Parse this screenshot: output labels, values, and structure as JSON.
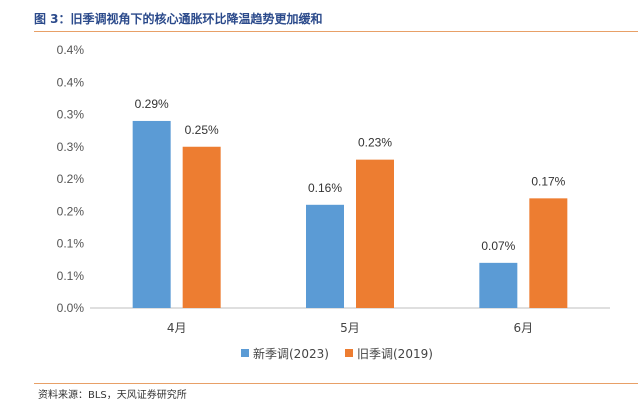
{
  "figure": {
    "title": "图 3：旧季调视角下的核心通胀环比降温趋势更加缓和",
    "source": "资料来源：BLS，天风证券研究所"
  },
  "colors": {
    "series_1": "#5b9bd5",
    "series_2": "#ed7d31",
    "rule": "#e8a067"
  },
  "chart_data": {
    "type": "bar",
    "categories": [
      "4月",
      "5月",
      "6月"
    ],
    "series": [
      {
        "name": "新季调(2023)",
        "values": [
          0.29,
          0.16,
          0.07
        ],
        "labels": [
          "0.29%",
          "0.16%",
          "0.07%"
        ]
      },
      {
        "name": "旧季调(2019)",
        "values": [
          0.25,
          0.23,
          0.17
        ],
        "labels": [
          "0.25%",
          "0.23%",
          "0.17%"
        ]
      }
    ],
    "ylim": [
      0,
      0.4
    ],
    "yticks": [
      0,
      0.05,
      0.1,
      0.15,
      0.2,
      0.25,
      0.3,
      0.35,
      0.4
    ],
    "ytick_labels": [
      "0.0%",
      "0.1%",
      "0.1%",
      "0.2%",
      "0.2%",
      "0.3%",
      "0.3%",
      "0.4%",
      "0.4%"
    ],
    "legend_position": "bottom",
    "grid": false
  }
}
